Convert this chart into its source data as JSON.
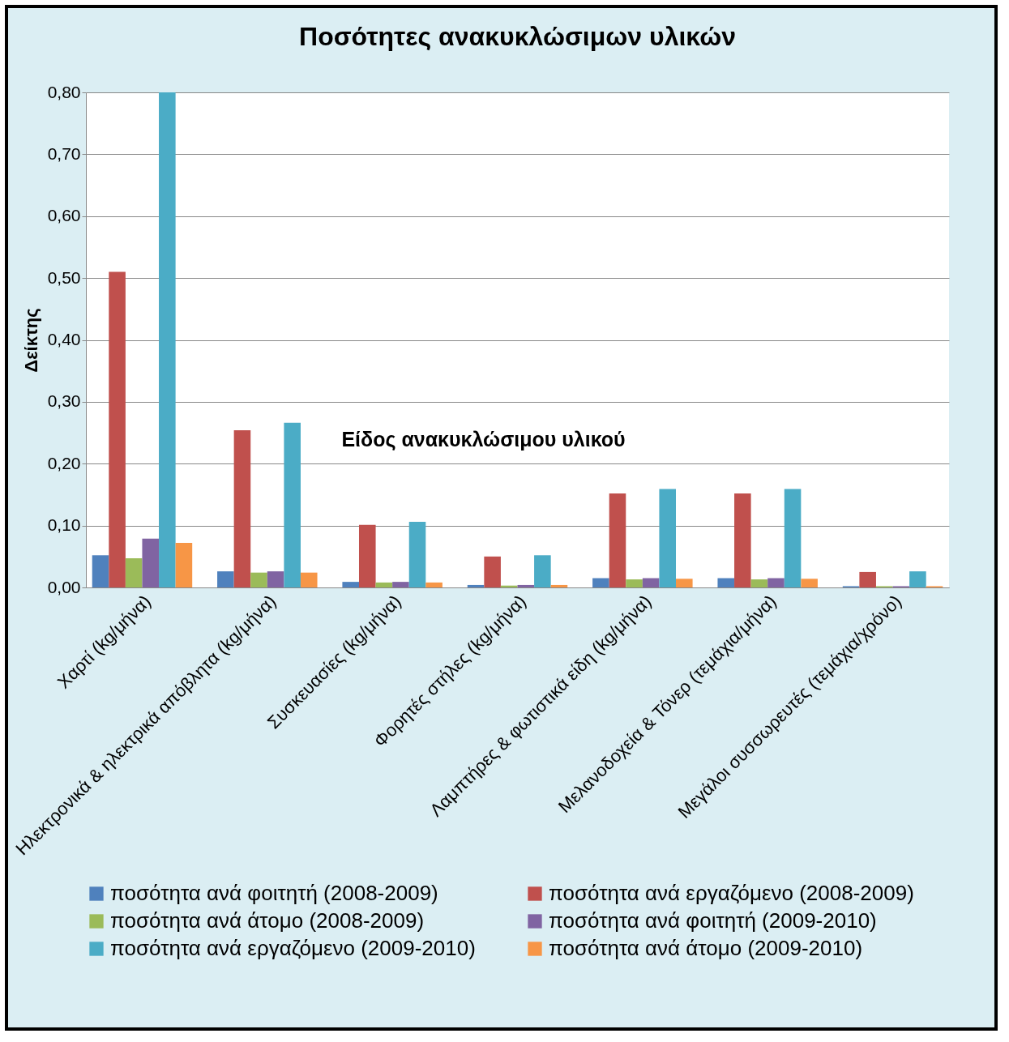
{
  "chart_data": {
    "type": "bar",
    "title": "Ποσότητες ανακυκλώσιμων υλικών",
    "xlabel": "Είδος ανακυκλώσιμου υλικού",
    "ylabel": "Δείκτης",
    "categories": [
      "Χαρτί (kg/μήνα)",
      "Ηλεκτρονικά & ηλεκτρικά απόβλητα (kg/μήνα)",
      "Συσκευασίες (kg/μήνα)",
      "Φορητές στήλες (kg/μήνα)",
      "Λαμπτήρες & φωτιστικά είδη (kg/μήνα)",
      "Μελανοδοχεία & Τόνερ  (τεμάχια/μήνα)",
      "Μεγάλοι συσσωρευτές (τεμάχια/χρόνο)"
    ],
    "series": [
      {
        "name": "ποσότητα ανά φοιτητή (2008-2009)",
        "color": "#4f81bd",
        "values": [
          0.052,
          0.026,
          0.009,
          0.004,
          0.015,
          0.015,
          0.002
        ]
      },
      {
        "name": "ποσότητα ανά εργαζόμενο (2008-2009)",
        "color": "#c0504d",
        "values": [
          0.51,
          0.254,
          0.101,
          0.05,
          0.152,
          0.152,
          0.025
        ]
      },
      {
        "name": "ποσότητα ανά άτομο (2008-2009)",
        "color": "#9bbb59",
        "values": [
          0.047,
          0.024,
          0.008,
          0.003,
          0.013,
          0.013,
          0.002
        ]
      },
      {
        "name": "ποσότητα ανά φοιτητή (2009-2010)",
        "color": "#8064a2",
        "values": [
          0.079,
          0.026,
          0.009,
          0.004,
          0.015,
          0.015,
          0.002
        ]
      },
      {
        "name": "ποσότητα ανά εργαζόμενο (2009-2010)",
        "color": "#4bacc6",
        "values": [
          0.8,
          0.266,
          0.106,
          0.052,
          0.159,
          0.159,
          0.026
        ]
      },
      {
        "name": "ποσότητα ανά άτομο (2009-2010)",
        "color": "#f79646",
        "values": [
          0.072,
          0.024,
          0.008,
          0.004,
          0.014,
          0.014,
          0.002
        ]
      }
    ],
    "ylim": [
      0,
      0.8
    ],
    "yticks": [
      {
        "value": 0,
        "label": "0,00"
      },
      {
        "value": 0.1,
        "label": "0,10"
      },
      {
        "value": 0.2,
        "label": "0,20"
      },
      {
        "value": 0.3,
        "label": "0,30"
      },
      {
        "value": 0.4,
        "label": "0,40"
      },
      {
        "value": 0.5,
        "label": "0,50"
      },
      {
        "value": 0.6,
        "label": "0,60"
      },
      {
        "value": 0.7,
        "label": "0,70"
      },
      {
        "value": 0.8,
        "label": "0,80"
      }
    ],
    "grid": "y",
    "legend": "bottom"
  }
}
